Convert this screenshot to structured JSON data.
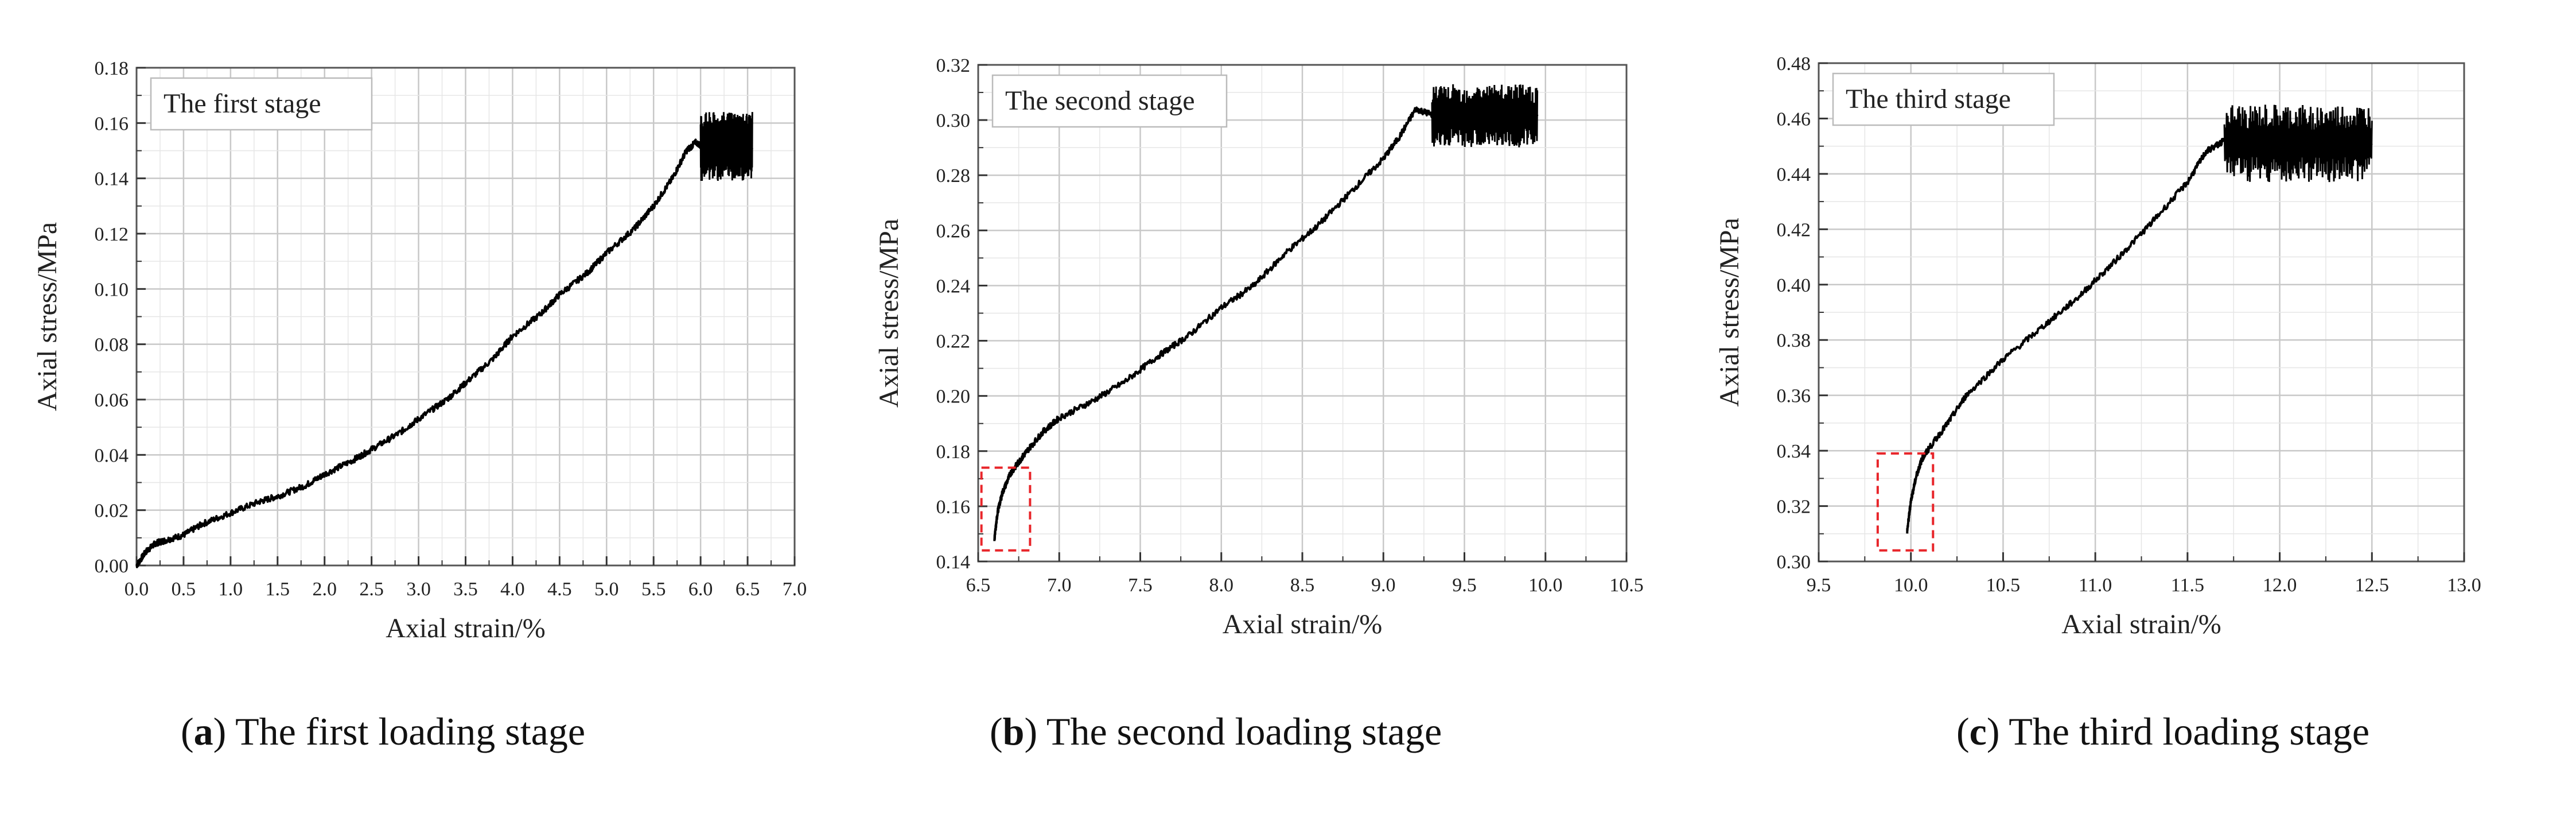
{
  "chart_data": [
    {
      "type": "line",
      "panel": "a",
      "caption_letter": "a",
      "caption_text": " The first loading stage",
      "legend_box": "The first stage",
      "xlabel": "Axial strain/%",
      "ylabel": "Axial stress/MPa",
      "xlim": [
        0.0,
        7.0
      ],
      "ylim": [
        0.0,
        0.18
      ],
      "xticks": [
        "0.0",
        "0.5",
        "1.0",
        "1.5",
        "2.0",
        "2.5",
        "3.0",
        "3.5",
        "4.0",
        "4.5",
        "5.0",
        "5.5",
        "6.0",
        "6.5",
        "7.0"
      ],
      "yticks": [
        "0.00",
        "0.02",
        "0.04",
        "0.06",
        "0.08",
        "0.10",
        "0.12",
        "0.14",
        "0.16",
        "0.18"
      ],
      "grid": true,
      "series": [
        {
          "x": [
            0.0,
            0.1,
            0.2,
            0.3,
            0.5,
            0.7,
            1.0,
            1.3,
            1.5,
            1.8,
            2.0,
            2.3,
            2.5,
            2.8,
            3.0,
            3.3,
            3.5,
            3.8,
            4.0,
            4.3,
            4.5,
            4.8,
            5.0,
            5.3,
            5.5,
            5.7,
            5.85,
            5.95,
            6.1,
            6.3,
            6.45,
            6.55
          ],
          "y": [
            0.0,
            0.005,
            0.008,
            0.009,
            0.011,
            0.015,
            0.019,
            0.023,
            0.025,
            0.029,
            0.033,
            0.038,
            0.042,
            0.048,
            0.053,
            0.06,
            0.066,
            0.075,
            0.083,
            0.091,
            0.098,
            0.106,
            0.113,
            0.122,
            0.13,
            0.14,
            0.15,
            0.153,
            0.15,
            0.152,
            0.15,
            0.151
          ]
        }
      ],
      "noise_zone": {
        "x_from": 6.0,
        "x_to": 6.55,
        "y_low": 0.139,
        "y_high": 0.164
      }
    },
    {
      "type": "line",
      "panel": "b",
      "caption_letter": "b",
      "caption_text": " The second loading stage",
      "legend_box": "The second stage",
      "xlabel": "Axial strain/%",
      "ylabel": "Axial stress/MPa",
      "xlim": [
        6.5,
        10.5
      ],
      "ylim": [
        0.14,
        0.32
      ],
      "xticks": [
        "6.5",
        "7.0",
        "7.5",
        "8.0",
        "8.5",
        "9.0",
        "9.5",
        "10.0",
        "10.5"
      ],
      "yticks": [
        "0.14",
        "0.16",
        "0.18",
        "0.20",
        "0.22",
        "0.24",
        "0.26",
        "0.28",
        "0.30",
        "0.32"
      ],
      "grid": true,
      "highlight_box": {
        "x_from": 6.52,
        "x_to": 6.82,
        "y_from": 0.144,
        "y_to": 0.174
      },
      "series": [
        {
          "x": [
            6.6,
            6.62,
            6.65,
            6.7,
            6.75,
            6.8,
            6.9,
            7.0,
            7.2,
            7.4,
            7.6,
            7.8,
            8.0,
            8.2,
            8.4,
            8.6,
            8.8,
            9.0,
            9.1,
            9.2,
            9.3,
            9.5,
            9.7,
            9.95
          ],
          "y": [
            0.148,
            0.158,
            0.165,
            0.172,
            0.176,
            0.18,
            0.187,
            0.192,
            0.198,
            0.205,
            0.214,
            0.222,
            0.232,
            0.24,
            0.252,
            0.262,
            0.274,
            0.286,
            0.294,
            0.304,
            0.302,
            0.3,
            0.301,
            0.302
          ]
        }
      ],
      "noise_zone": {
        "x_from": 9.3,
        "x_to": 9.95,
        "y_low": 0.29,
        "y_high": 0.313
      }
    },
    {
      "type": "line",
      "panel": "c",
      "caption_letter": "c",
      "caption_text": " The third loading stage",
      "legend_box": "The third stage",
      "xlabel": "Axial strain/%",
      "ylabel": "Axial stress/MPa",
      "xlim": [
        9.5,
        13.0
      ],
      "ylim": [
        0.3,
        0.48
      ],
      "xticks": [
        "9.5",
        "10.0",
        "10.5",
        "11.0",
        "11.5",
        "12.0",
        "12.5",
        "13.0"
      ],
      "yticks": [
        "0.30",
        "0.32",
        "0.34",
        "0.36",
        "0.38",
        "0.40",
        "0.42",
        "0.44",
        "0.46",
        "0.48"
      ],
      "grid": true,
      "highlight_box": {
        "x_from": 9.82,
        "x_to": 10.12,
        "y_from": 0.304,
        "y_to": 0.339
      },
      "series": [
        {
          "x": [
            9.98,
            10.0,
            10.03,
            10.06,
            10.1,
            10.2,
            10.3,
            10.5,
            10.7,
            10.9,
            11.1,
            11.3,
            11.5,
            11.6,
            11.7,
            11.9,
            12.1,
            12.3,
            12.5
          ],
          "y": [
            0.311,
            0.322,
            0.331,
            0.337,
            0.341,
            0.35,
            0.36,
            0.373,
            0.384,
            0.395,
            0.408,
            0.422,
            0.437,
            0.448,
            0.452,
            0.449,
            0.45,
            0.451,
            0.451
          ]
        }
      ],
      "noise_zone": {
        "x_from": 11.7,
        "x_to": 12.5,
        "y_low": 0.437,
        "y_high": 0.465
      }
    }
  ]
}
